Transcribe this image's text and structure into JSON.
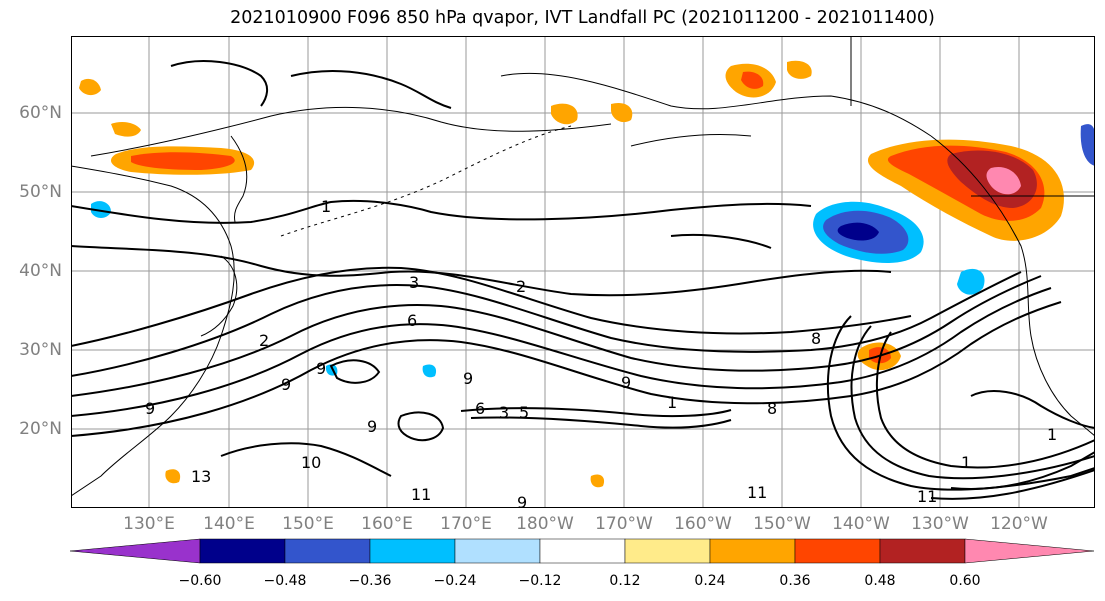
{
  "title": "2021010900 F096 850 hPa qvapor, IVT Landfall PC (2021011200 - 2021011400)",
  "map": {
    "lat_labels": [
      "60°N",
      "50°N",
      "40°N",
      "30°N",
      "20°N"
    ],
    "lon_labels": [
      "130°E",
      "140°E",
      "150°E",
      "160°E",
      "170°E",
      "180°W",
      "170°W",
      "160°W",
      "150°W",
      "140°W",
      "130°W",
      "120°W"
    ],
    "contour_labels": [
      "1",
      "2",
      "3",
      "6",
      "9",
      "9",
      "9",
      "6",
      "3",
      "5",
      "2",
      "9",
      "11",
      "11",
      "9",
      "8",
      "9",
      "11",
      "13",
      "9",
      "10",
      "8",
      "1",
      "1",
      "1"
    ]
  },
  "colorbar": {
    "colors": [
      "#9932cc",
      "#00008b",
      "#3355cc",
      "#00bfff",
      "#b0e0ff",
      "#ffffff",
      "#ffeb8a",
      "#ffa500",
      "#ff4500",
      "#b22222",
      "#ff88b0"
    ],
    "tick_labels": [
      "−0.60",
      "−0.48",
      "−0.36",
      "−0.24",
      "−0.12",
      "0.12",
      "0.24",
      "0.36",
      "0.48",
      "0.60"
    ]
  }
}
